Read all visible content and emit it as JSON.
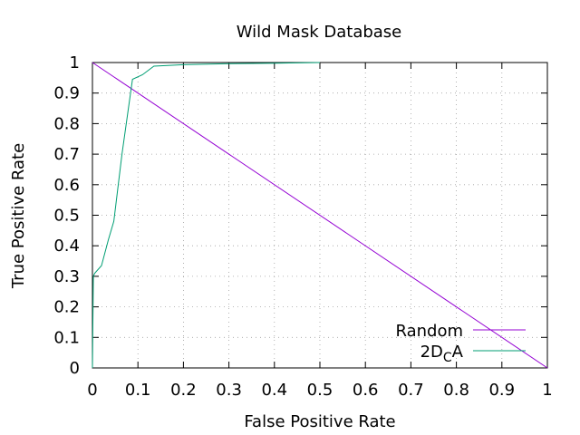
{
  "chart_data": {
    "type": "line",
    "title": "Wild Mask Database",
    "xlabel": "False Positive Rate",
    "ylabel": "True Positive Rate",
    "xlim": [
      0,
      1
    ],
    "ylim": [
      0,
      1
    ],
    "xticks": [
      0,
      0.1,
      0.2,
      0.3,
      0.4,
      0.5,
      0.6,
      0.7,
      0.8,
      0.9,
      1
    ],
    "yticks": [
      0,
      0.1,
      0.2,
      0.3,
      0.4,
      0.5,
      0.6,
      0.7,
      0.8,
      0.9,
      1
    ],
    "xtick_labels": [
      "0",
      "0.1",
      "0.2",
      "0.3",
      "0.4",
      "0.5",
      "0.6",
      "0.7",
      "0.8",
      "0.9",
      "1"
    ],
    "ytick_labels": [
      "0",
      "0.1",
      "0.2",
      "0.3",
      "0.4",
      "0.5",
      "0.6",
      "0.7",
      "0.8",
      "0.9",
      "1"
    ],
    "grid": true,
    "legend": {
      "position": "bottom-right",
      "entries": [
        {
          "label": "Random",
          "label_sub": "",
          "label_tail": ""
        },
        {
          "label": "2D",
          "label_sub": "C",
          "label_tail": "A"
        }
      ]
    },
    "series": [
      {
        "name": "Random",
        "color": "#9400d3",
        "x": [
          0,
          1
        ],
        "y": [
          1,
          0
        ]
      },
      {
        "name": "2DCA",
        "color": "#009e73",
        "x": [
          0,
          0.002,
          0.005,
          0.02,
          0.035,
          0.047,
          0.065,
          0.088,
          0.11,
          0.135,
          0.2,
          0.3,
          0.4,
          0.5
        ],
        "y": [
          0,
          0.3,
          0.31,
          0.335,
          0.42,
          0.48,
          0.7,
          0.945,
          0.96,
          0.988,
          0.993,
          0.996,
          0.998,
          1.0
        ]
      }
    ]
  }
}
